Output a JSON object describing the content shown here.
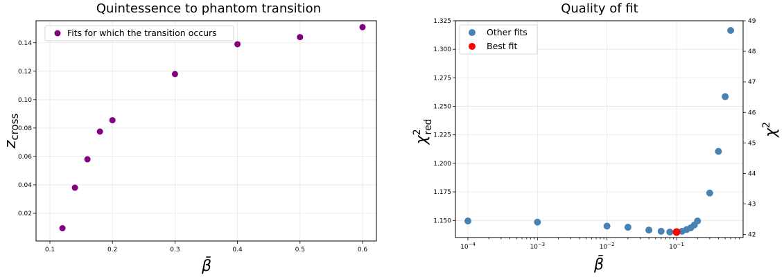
{
  "chart_data": [
    {
      "type": "scatter",
      "title": "Quintessence to phantom transition",
      "xlabel": "β̄",
      "ylabel_main": "z",
      "ylabel_sub": "cross",
      "xlim": [
        0.1,
        0.6
      ],
      "ylim": [
        0.0,
        0.155
      ],
      "xticks": [
        0.1,
        0.2,
        0.3,
        0.4,
        0.5,
        0.6
      ],
      "xtick_labels": [
        "0.1",
        "0.2",
        "0.3",
        "0.4",
        "0.5",
        "0.6"
      ],
      "yticks": [
        0.02,
        0.04,
        0.06,
        0.08,
        0.1,
        0.12,
        0.14
      ],
      "ytick_labels": [
        "0.02",
        "0.04",
        "0.06",
        "0.08",
        "0.10",
        "0.12",
        "0.14"
      ],
      "grid": true,
      "legend_position": "top-left",
      "series": [
        {
          "name": "Fits for which the transition occurs",
          "color": "#800080",
          "x": [
            0.12,
            0.14,
            0.16,
            0.18,
            0.2,
            0.3,
            0.4,
            0.5,
            0.6
          ],
          "y": [
            0.0095,
            0.038,
            0.058,
            0.0775,
            0.0855,
            0.118,
            0.139,
            0.144,
            0.151
          ]
        }
      ]
    },
    {
      "type": "scatter",
      "title": "Quality of fit",
      "xlabel": "β̄",
      "ylabel_main": "χ",
      "ylabel_sup": "2",
      "ylabel_sub": "red",
      "y2label_main": "χ",
      "y2label_sup": "2",
      "xscale": "log",
      "xlim": [
        0.0001,
        0.7
      ],
      "ylim": [
        1.135,
        1.325
      ],
      "y2lim": [
        41.9,
        49.0
      ],
      "xticks": [
        0.0001,
        0.001,
        0.01,
        0.1
      ],
      "xtick_base": "10",
      "xtick_exponents": [
        "−4",
        "−3",
        "−2",
        "−1"
      ],
      "yticks": [
        1.15,
        1.175,
        1.2,
        1.225,
        1.25,
        1.275,
        1.3,
        1.325
      ],
      "ytick_labels": [
        "1.150",
        "1.175",
        "1.200",
        "1.225",
        "1.250",
        "1.275",
        "1.300",
        "1.325"
      ],
      "y2ticks": [
        42,
        43,
        44,
        45,
        46,
        47,
        48,
        49
      ],
      "y2tick_labels": [
        "42",
        "43",
        "44",
        "45",
        "46",
        "47",
        "48",
        "49"
      ],
      "grid": true,
      "legend_position": "top-left",
      "series": [
        {
          "name": "Other fits",
          "color": "#4682b4",
          "x": [
            0.0001,
            0.001,
            0.01,
            0.02,
            0.04,
            0.06,
            0.08,
            0.12,
            0.14,
            0.16,
            0.18,
            0.2,
            0.3,
            0.4,
            0.5,
            0.6
          ],
          "y": [
            1.1495,
            1.1485,
            1.145,
            1.144,
            1.1415,
            1.1405,
            1.1398,
            1.1405,
            1.142,
            1.1435,
            1.146,
            1.1495,
            1.174,
            1.2105,
            1.2585,
            1.3165
          ]
        },
        {
          "name": "Best fit",
          "color": "#ff0000",
          "x": [
            0.1
          ],
          "y": [
            1.1398
          ]
        }
      ]
    }
  ]
}
